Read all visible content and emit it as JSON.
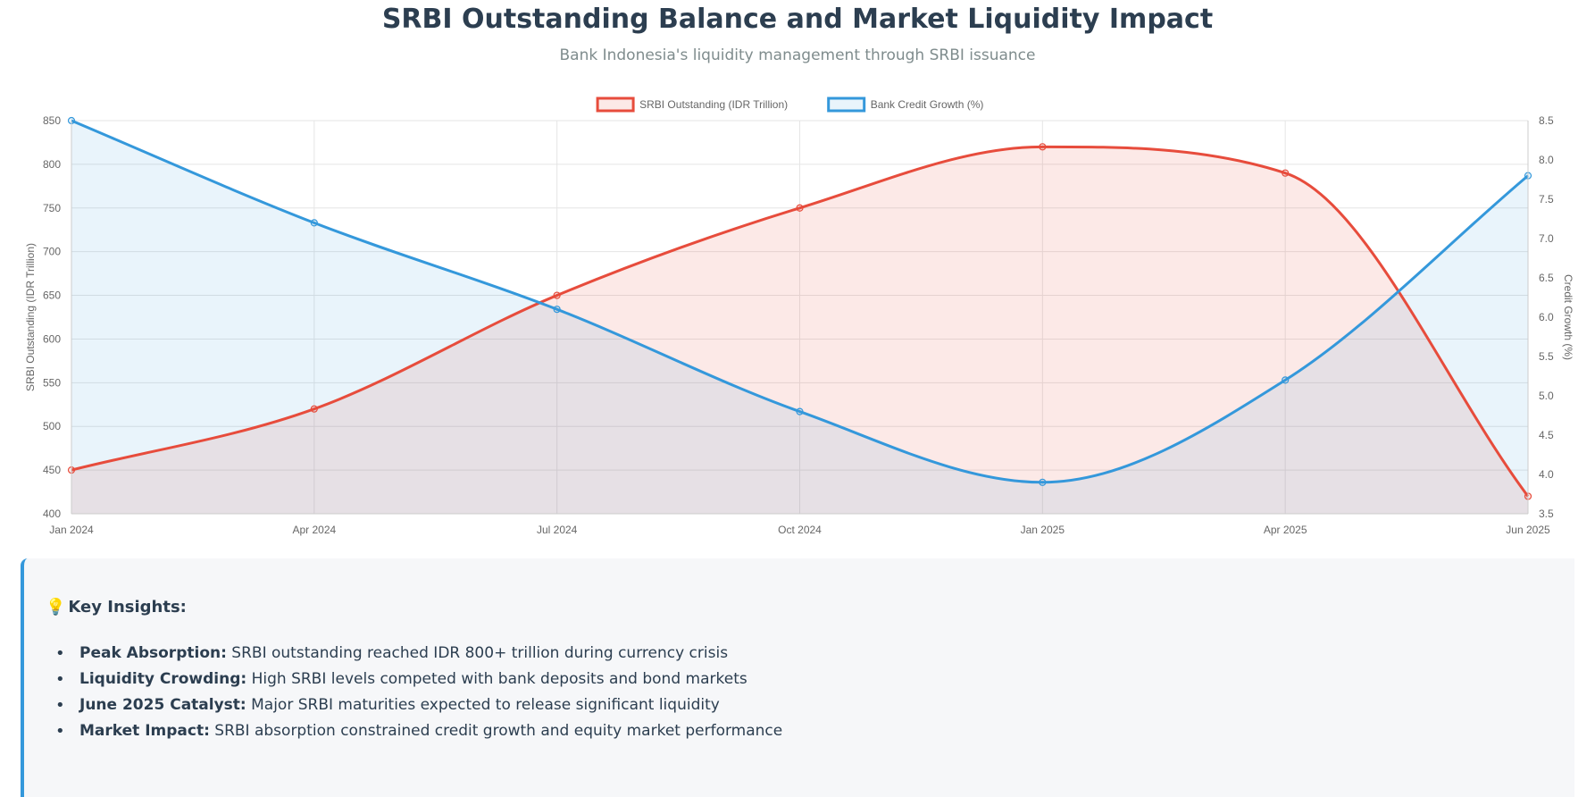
{
  "header": {
    "title": "SRBI Outstanding Balance and Market Liquidity Impact",
    "subtitle": "Bank Indonesia's liquidity management through SRBI issuance"
  },
  "chart_data": {
    "type": "line",
    "categories": [
      "Jan 2024",
      "Apr 2024",
      "Jul 2024",
      "Oct 2024",
      "Jan 2025",
      "Apr 2025",
      "Jun 2025"
    ],
    "series": [
      {
        "name": "SRBI Outstanding (IDR Trillion)",
        "axis": "left",
        "color": "#e74c3c",
        "fill": "rgba(231,76,60,0.12)",
        "values": [
          450,
          520,
          650,
          750,
          820,
          790,
          420
        ]
      },
      {
        "name": "Bank Credit Growth (%)",
        "axis": "right",
        "color": "#3498db",
        "fill": "rgba(52,152,219,0.11)",
        "values": [
          8.5,
          7.2,
          6.1,
          4.8,
          3.9,
          5.2,
          7.8
        ]
      }
    ],
    "y_left": {
      "label": "SRBI Outstanding (IDR Trillion)",
      "min": 400,
      "max": 850,
      "step": 50
    },
    "y_right": {
      "label": "Credit Growth (%)",
      "min": 3.5,
      "max": 8.5,
      "step": 0.5
    },
    "legend": "top-center",
    "grid": true,
    "area_fill": true,
    "smooth": true
  },
  "insights": {
    "icon": "lightbulb-icon",
    "icon_glyph": "💡",
    "heading": "Key Insights:",
    "items": [
      {
        "label": "Peak Absorption:",
        "text": " SRBI outstanding reached IDR 800+ trillion during currency crisis"
      },
      {
        "label": "Liquidity Crowding:",
        "text": " High SRBI levels competed with bank deposits and bond markets"
      },
      {
        "label": "June 2025 Catalyst:",
        "text": " Major SRBI maturities expected to release significant liquidity"
      },
      {
        "label": "Market Impact:",
        "text": " SRBI absorption constrained credit growth and equity market performance"
      }
    ]
  }
}
